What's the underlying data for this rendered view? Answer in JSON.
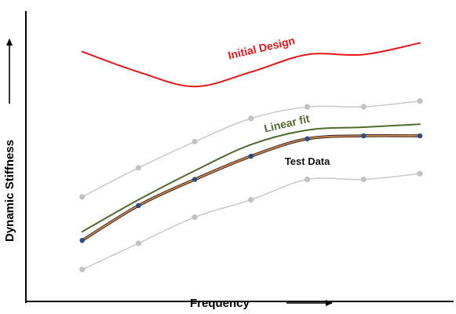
{
  "chart_data": {
    "type": "line",
    "title": "",
    "xlabel": "Frequency",
    "ylabel": "Dynamic Stiffness",
    "x": [
      1,
      2,
      3,
      4,
      5,
      6,
      7
    ],
    "xlim": [
      0,
      7.6
    ],
    "ylim": [
      0,
      100
    ],
    "grid": false,
    "legend": "none",
    "series": [
      {
        "key": "initial_design",
        "line_color": "#e8161b",
        "line_width": 2,
        "markers": false,
        "values": [
          86,
          79,
          74,
          79,
          85,
          85,
          89
        ]
      },
      {
        "key": "upper_bound",
        "line_color": "#c9c9c9",
        "marker_color": "#c2c2c2",
        "line_width": 1.5,
        "markers": true,
        "values": [
          36,
          46,
          55,
          63,
          67,
          67,
          69
        ]
      },
      {
        "key": "linear_fit",
        "line_color": "#4f6b2f",
        "line_width": 2,
        "markers": false,
        "values": [
          24,
          35,
          45,
          54,
          59,
          60,
          61
        ]
      },
      {
        "key": "test_data",
        "line_color": "#c87f4a",
        "marker_color": "#2c4d83",
        "line_width": 2,
        "markers": true,
        "values": [
          21,
          33,
          42,
          50,
          56,
          57,
          57
        ]
      },
      {
        "key": "lower_bound",
        "line_color": "#c9c9c9",
        "marker_color": "#c2c2c2",
        "line_width": 1.5,
        "markers": true,
        "values": [
          11,
          20,
          29,
          35,
          42,
          42,
          44
        ]
      }
    ],
    "annotations": [
      {
        "text": "Initial Design",
        "color": "#e8161b",
        "x": 4.2,
        "y": 86,
        "rotate": -13,
        "size": 14
      },
      {
        "text": "Linear fit",
        "color": "#4f6b2f",
        "x": 4.65,
        "y": 60,
        "rotate": -13,
        "size": 14
      },
      {
        "text": "Test Data",
        "color": "#111111",
        "x": 5.0,
        "y": 47,
        "rotate": 0,
        "size": 13
      }
    ]
  }
}
